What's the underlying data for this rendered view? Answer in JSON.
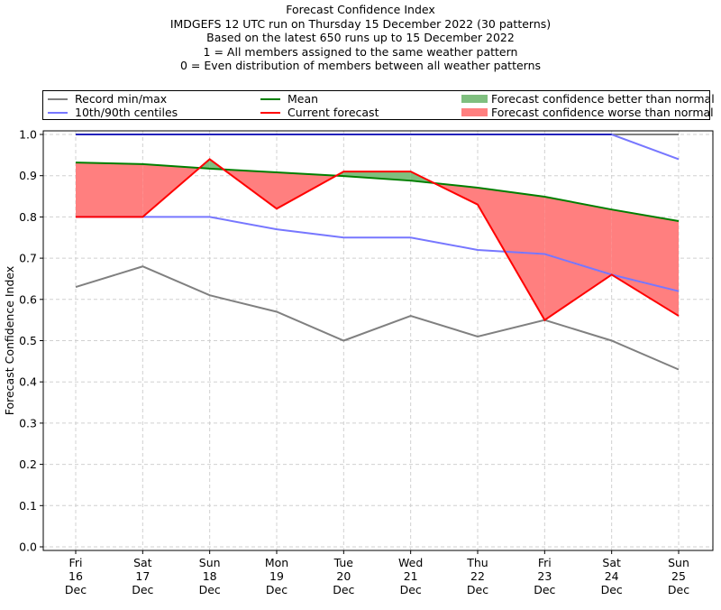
{
  "chart_data": {
    "type": "line",
    "title": "Forecast Confidence Index",
    "subtitle_lines": [
      "IMDGEFS 12 UTC run on Thursday 15 December 2022 (30 patterns)",
      "Based on the latest 650 runs up to 15 December 2022",
      "1 = All members assigned to the same weather pattern",
      "0 = Even distribution of members between all weather patterns"
    ],
    "xlabel": "",
    "ylabel": "Forecast Confidence Index",
    "ylim": [
      0.0,
      1.0
    ],
    "yticks": [
      "0.0",
      "0.1",
      "0.2",
      "0.3",
      "0.4",
      "0.5",
      "0.6",
      "0.7",
      "0.8",
      "0.9",
      "1.0"
    ],
    "grid": true,
    "legend_position": "top",
    "categories": [
      [
        "Fri",
        "16",
        "Dec"
      ],
      [
        "Sat",
        "17",
        "Dec"
      ],
      [
        "Sun",
        "18",
        "Dec"
      ],
      [
        "Mon",
        "19",
        "Dec"
      ],
      [
        "Tue",
        "20",
        "Dec"
      ],
      [
        "Wed",
        "21",
        "Dec"
      ],
      [
        "Thu",
        "22",
        "Dec"
      ],
      [
        "Fri",
        "23",
        "Dec"
      ],
      [
        "Sat",
        "24",
        "Dec"
      ],
      [
        "Sun",
        "25",
        "Dec"
      ]
    ],
    "series": [
      {
        "name": "Record min/max",
        "role": "record_max",
        "color": "#808080",
        "values": [
          1.0,
          1.0,
          1.0,
          1.0,
          1.0,
          1.0,
          1.0,
          1.0,
          1.0,
          1.0
        ]
      },
      {
        "name": "Record min/max",
        "role": "record_min",
        "color": "#808080",
        "values": [
          0.63,
          0.68,
          0.61,
          0.57,
          0.5,
          0.56,
          0.51,
          0.55,
          0.5,
          0.43
        ]
      },
      {
        "name": "10th/90th centiles",
        "role": "p90",
        "color": "#7777ff",
        "values": [
          1.0,
          1.0,
          1.0,
          1.0,
          1.0,
          1.0,
          1.0,
          1.0,
          1.0,
          0.94
        ]
      },
      {
        "name": "10th/90th centiles",
        "role": "p10",
        "color": "#7777ff",
        "values": [
          0.8,
          0.8,
          0.8,
          0.77,
          0.75,
          0.75,
          0.72,
          0.71,
          0.66,
          0.62
        ]
      },
      {
        "name": "Mean",
        "role": "mean",
        "color": "#007f00",
        "values": [
          0.932,
          0.928,
          0.917,
          0.908,
          0.899,
          0.888,
          0.871,
          0.849,
          0.818,
          0.79
        ]
      },
      {
        "name": "Current forecast",
        "role": "current",
        "color": "#ff0000",
        "values": [
          0.8,
          0.8,
          0.94,
          0.82,
          0.91,
          0.91,
          0.83,
          0.55,
          0.66,
          0.56
        ]
      }
    ],
    "fills": [
      {
        "name": "Forecast confidence better than normal",
        "color": "#7fbf7f"
      },
      {
        "name": "Forecast confidence worse than normal",
        "color": "#ff7f7f"
      }
    ]
  },
  "legend": {
    "record": "Record min/max",
    "centiles": "10th/90th centiles",
    "mean": "Mean",
    "current": "Current forecast",
    "better": "Forecast confidence better than normal",
    "worse": "Forecast confidence worse than normal"
  },
  "colors": {
    "record": "#808080",
    "centiles": "#7777ff",
    "centiles_overlap": "#2222bb",
    "mean": "#007f00",
    "current": "#ff0000",
    "better": "#7fbf7f",
    "worse": "#ff7f7f",
    "grid": "#d0d0d0"
  }
}
